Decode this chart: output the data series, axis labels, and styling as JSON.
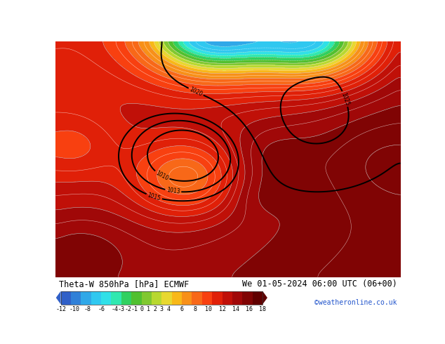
{
  "title_left": "Theta-W 850hPa [hPa] ECMWF",
  "title_right": "We 01-05-2024 06:00 UTC (06+00)",
  "credit": "©weatheronline.co.uk",
  "colorbar_ticks": [
    -12,
    -10,
    -8,
    -6,
    -4,
    -3,
    -2,
    -1,
    0,
    1,
    2,
    3,
    4,
    6,
    8,
    10,
    12,
    14,
    16,
    18
  ],
  "colorbar_colors": [
    "#3060c8",
    "#3080d8",
    "#30a8e8",
    "#30c8f0",
    "#30e0e8",
    "#30e8b0",
    "#30d060",
    "#50c030",
    "#80c830",
    "#b8d830",
    "#e8d830",
    "#f8b818",
    "#f89018",
    "#f86818",
    "#f84010",
    "#e02008",
    "#c01008",
    "#a00808",
    "#800404",
    "#600000"
  ],
  "figure_bg": "#ffffff",
  "fig_width": 6.34,
  "fig_height": 4.9,
  "dpi": 100
}
